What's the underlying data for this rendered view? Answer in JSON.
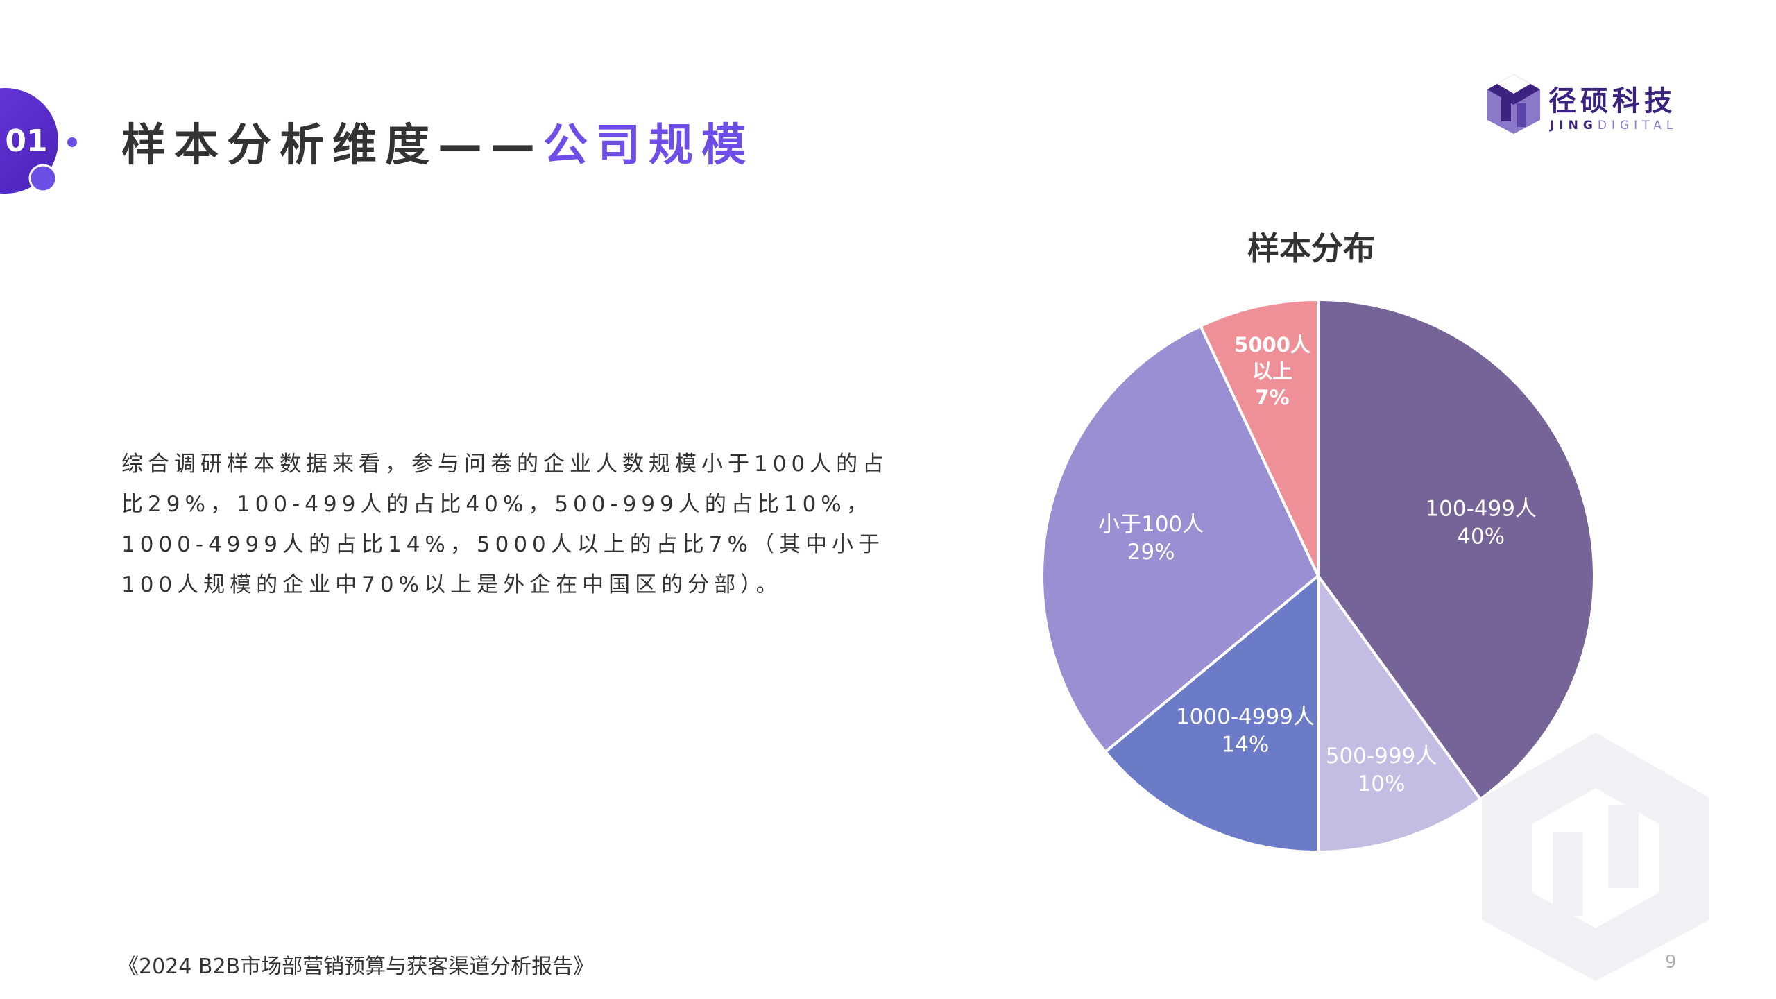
{
  "section": {
    "number": "01",
    "title_main": "样本分析维度——",
    "title_accent": "公司规模"
  },
  "logo": {
    "name_cn": "径硕科技",
    "name_en_bold": "JING",
    "name_en_light": "DIGITAL"
  },
  "body": {
    "paragraph": "综合调研样本数据来看，参与问卷的企业人数规模小于100人的占比29%，100-499人的占比40%，500-999人的占比10%，1000-4999人的占比14%，5000人以上的占比7%（其中小于100人规模的企业中70%以上是外企在中国区的分部）。"
  },
  "chart_data": {
    "type": "pie",
    "title": "样本分布",
    "slices": [
      {
        "label": "100-499人",
        "value": 40,
        "value_label": "40%",
        "color": "#766498"
      },
      {
        "label": "500-999人",
        "value": 10,
        "value_label": "10%",
        "color": "#c5bce4"
      },
      {
        "label": "1000-4999人",
        "value": 14,
        "value_label": "14%",
        "color": "#6b7bc7"
      },
      {
        "label": "小于100人",
        "value": 29,
        "value_label": "29%",
        "color": "#9a8fd3"
      },
      {
        "label": "5000人以上",
        "value": 7,
        "value_label": "7%",
        "color": "#ef9098"
      }
    ],
    "start": "12 o'clock",
    "direction": "clockwise"
  },
  "footer": {
    "source": "《2024 B2B市场部营销预算与获客渠道分析报告》",
    "page": "9"
  },
  "colors": {
    "accent": "#6f4de8",
    "brand": "#3c2380"
  }
}
